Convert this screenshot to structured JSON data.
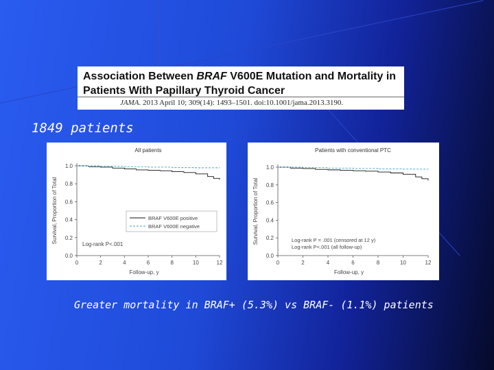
{
  "header": {
    "title_part1": "Association Between ",
    "title_braf": "BRAF",
    "title_part2": " V600E Mutation and Mortality in",
    "title_line2": "Patients With Papillary Thyroid Cancer",
    "citation_journal": "JAMA",
    "citation_rest": ". 2013 April 10; 309(14): 1493–1501. doi:10.1001/jama.2013.3190."
  },
  "patient_count": "1849 patients",
  "caption": "Greater mortality in BRAF+ (5.3%) vs BRAF- (1.1%) patients",
  "colors": {
    "positive_line": "#111111",
    "negative_line": "#3aa0c8"
  },
  "chart_data": [
    {
      "type": "line",
      "title": "All patients",
      "xlabel": "Follow-up, y",
      "ylabel": "Survival, Proportion of Total",
      "xlim": [
        0,
        12
      ],
      "ylim": [
        0,
        1.0
      ],
      "x_ticks": [
        "0",
        "2",
        "4",
        "6",
        "8",
        "10",
        "12"
      ],
      "y_ticks": [
        "0.0",
        "0.2",
        "0.4",
        "0.6",
        "0.8",
        "1.0"
      ],
      "legend": [
        "BRAF V600E positive",
        "BRAF V600E negative"
      ],
      "legend_position": "bottom-right",
      "annotation": "Log-rank P<.001",
      "series": [
        {
          "name": "BRAF V600E positive",
          "x": [
            0,
            1,
            2,
            3,
            4,
            5,
            6,
            7,
            8,
            9,
            10,
            11,
            11.5,
            12
          ],
          "y": [
            1.0,
            0.99,
            0.985,
            0.975,
            0.965,
            0.955,
            0.95,
            0.945,
            0.935,
            0.925,
            0.91,
            0.88,
            0.86,
            0.845
          ],
          "style": "solid"
        },
        {
          "name": "BRAF V600E negative",
          "x": [
            0,
            2,
            4,
            6,
            8,
            10,
            12
          ],
          "y": [
            1.0,
            0.995,
            0.99,
            0.985,
            0.98,
            0.978,
            0.975
          ],
          "style": "dashed"
        }
      ]
    },
    {
      "type": "line",
      "title": "Patients with conventional PTC",
      "xlabel": "Follow-up, y",
      "ylabel": "Survival, Proportion of Total",
      "xlim": [
        0,
        12
      ],
      "ylim": [
        0,
        1.0
      ],
      "x_ticks": [
        "0",
        "2",
        "4",
        "6",
        "8",
        "10",
        "12"
      ],
      "y_ticks": [
        "0.0",
        "0.2",
        "0.4",
        "0.6",
        "0.8",
        "1.0"
      ],
      "annotations": [
        "Log-rank P = .001 (censored at 12 y)",
        "Log-rank P<.001 (all follow-up)"
      ],
      "series": [
        {
          "x": [
            0,
            1,
            2,
            3,
            4,
            5,
            6,
            7,
            8,
            9,
            10,
            11,
            11.5,
            12
          ],
          "y": [
            1.0,
            0.99,
            0.985,
            0.975,
            0.97,
            0.965,
            0.96,
            0.955,
            0.945,
            0.935,
            0.92,
            0.89,
            0.87,
            0.85
          ],
          "style": "solid"
        },
        {
          "x": [
            0,
            2,
            4,
            6,
            8,
            10,
            12
          ],
          "y": [
            1.0,
            0.995,
            0.99,
            0.985,
            0.98,
            0.978,
            0.975
          ],
          "style": "dashed"
        }
      ]
    }
  ]
}
